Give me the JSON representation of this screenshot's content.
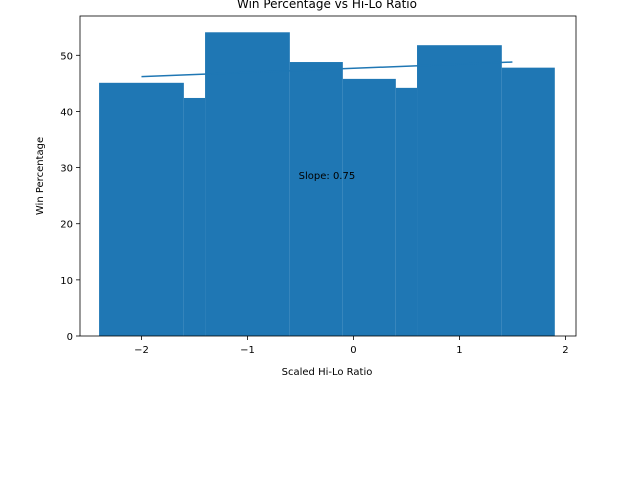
{
  "chart_data": {
    "type": "bar",
    "title": "Win Percentage vs Hi-Lo Ratio",
    "xlabel": "Scaled Hi-Lo Ratio",
    "ylabel": "Win Percentage",
    "xlim": [
      -2.58,
      2.1
    ],
    "ylim": [
      0,
      57
    ],
    "xticks": [
      -2,
      -1,
      0,
      1,
      2
    ],
    "yticks": [
      0,
      10,
      20,
      30,
      40,
      50
    ],
    "grid": false,
    "bar_color": "#1f77b4",
    "bars": [
      {
        "x_start": -2.4,
        "x_end": -1.6,
        "value": 45.1
      },
      {
        "x_start": -1.6,
        "x_end": -1.4,
        "value": 42.4
      },
      {
        "x_start": -1.4,
        "x_end": -0.6,
        "value": 54.1
      },
      {
        "x_start": -0.6,
        "x_end": -0.1,
        "value": 48.8
      },
      {
        "x_start": -0.1,
        "x_end": 0.4,
        "value": 45.8
      },
      {
        "x_start": 0.4,
        "x_end": 0.6,
        "value": 44.2
      },
      {
        "x_start": 0.6,
        "x_end": 1.4,
        "value": 51.8
      },
      {
        "x_start": 1.4,
        "x_end": 1.9,
        "value": 47.8
      }
    ],
    "trend_line": {
      "x": [
        -2.0,
        1.5
      ],
      "y": [
        46.2,
        48.8
      ],
      "color": "#1f77b4"
    },
    "annotation": {
      "text": "Slope: 0.75",
      "x": -0.25,
      "y": 28
    }
  }
}
